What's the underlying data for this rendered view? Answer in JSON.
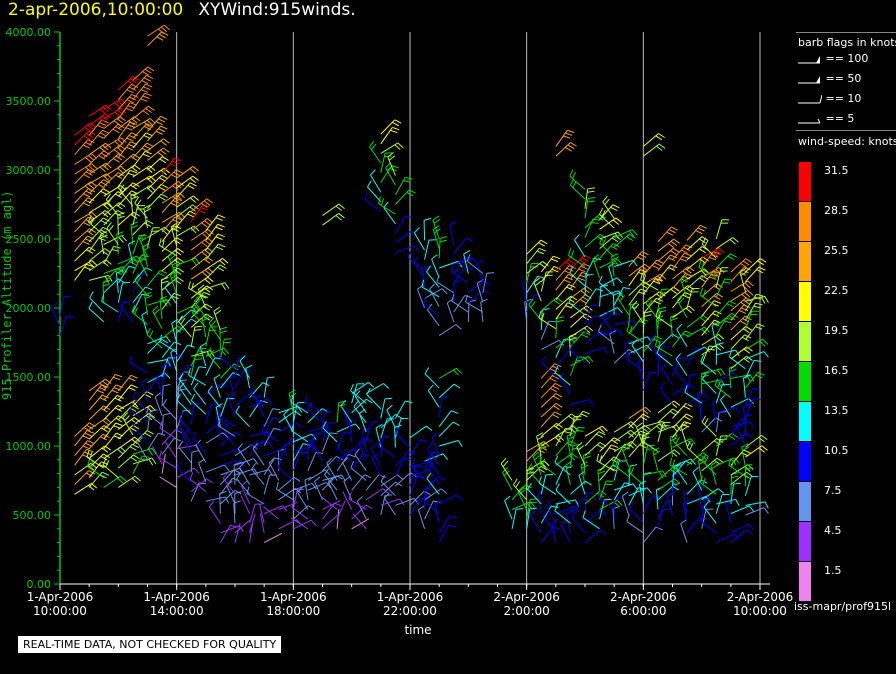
{
  "header": {
    "datetime": "2-apr-2006,10:00:00",
    "title": "XYWind:915winds."
  },
  "chart_data": {
    "type": "scatter",
    "subtype": "wind-barb time-height",
    "xlabel": "time",
    "ylabel": "915 Profiler Altitude (m agl)",
    "ylim": [
      0,
      4000
    ],
    "yticks": [
      "0.00",
      "500.00",
      "1000.00",
      "1500.00",
      "2000.00",
      "2500.00",
      "3000.00",
      "3500.00",
      "4000.00"
    ],
    "xticks": [
      {
        "date": "1-Apr-2006",
        "time": "10:00:00"
      },
      {
        "date": "1-Apr-2006",
        "time": "14:00:00"
      },
      {
        "date": "1-Apr-2006",
        "time": "18:00:00"
      },
      {
        "date": "1-Apr-2006",
        "time": "22:00:00"
      },
      {
        "date": "2-Apr-2006",
        "time": "2:00:00"
      },
      {
        "date": "2-Apr-2006",
        "time": "6:00:00"
      },
      {
        "date": "2-Apr-2006",
        "time": "10:00:00"
      }
    ],
    "xlim_hours": [
      0,
      24
    ],
    "grid": "vertical",
    "barb_legend_title": "barb flags in knots",
    "barb_legend": [
      "== 100",
      "== 50",
      "== 10",
      "== 5"
    ],
    "colorbar_title": "wind-speed: knots",
    "colorbar": [
      {
        "label": "31.5",
        "color": "#ff0000"
      },
      {
        "label": "28.5",
        "color": "#ff8c00"
      },
      {
        "label": "25.5",
        "color": "#ffa500"
      },
      {
        "label": "22.5",
        "color": "#ffff00"
      },
      {
        "label": "19.5",
        "color": "#adff2f"
      },
      {
        "label": "16.5",
        "color": "#00dd00"
      },
      {
        "label": "13.5",
        "color": "#00ffff"
      },
      {
        "label": "10.5",
        "color": "#0000ff"
      },
      {
        "label": "7.5",
        "color": "#6495ed"
      },
      {
        "label": "4.5",
        "color": "#9b30ff"
      },
      {
        "label": "1.5",
        "color": "#ee82ee"
      }
    ],
    "columns": [
      {
        "t": 0.0,
        "range": [
          1800,
          2000
        ],
        "speed": [
          12,
          12
        ]
      },
      {
        "t": 0.5,
        "range": [
          650,
          1100
        ],
        "speed": [
          24,
          26
        ]
      },
      {
        "t": 0.5,
        "range": [
          2200,
          3300
        ],
        "speed": [
          22,
          31
        ]
      },
      {
        "t": 1.0,
        "range": [
          700,
          1400
        ],
        "speed": [
          22,
          26
        ]
      },
      {
        "t": 1.0,
        "range": [
          2200,
          3400
        ],
        "speed": [
          18,
          31
        ]
      },
      {
        "t": 1.5,
        "range": [
          700,
          1400
        ],
        "speed": [
          18,
          26
        ]
      },
      {
        "t": 1.5,
        "range": [
          1900,
          3500
        ],
        "speed": [
          14,
          31
        ]
      },
      {
        "t": 2.0,
        "range": [
          700,
          1400
        ],
        "speed": [
          18,
          24
        ]
      },
      {
        "t": 2.0,
        "range": [
          1900,
          3600
        ],
        "speed": [
          12,
          31
        ]
      },
      {
        "t": 2.5,
        "range": [
          800,
          1300
        ],
        "speed": [
          16,
          24
        ]
      },
      {
        "t": 2.5,
        "range": [
          1900,
          3700
        ],
        "speed": [
          10,
          31
        ]
      },
      {
        "t": 3.0,
        "range": [
          900,
          3300
        ],
        "speed": [
          8,
          26
        ]
      },
      {
        "t": 3.0,
        "range": [
          3900,
          4000
        ],
        "speed": [
          26,
          28
        ]
      },
      {
        "t": 3.5,
        "range": [
          800,
          3000
        ],
        "speed": [
          4,
          30
        ]
      },
      {
        "t": 4.0,
        "range": [
          700,
          3000
        ],
        "speed": [
          4,
          24
        ]
      },
      {
        "t": 4.5,
        "range": [
          600,
          2700
        ],
        "speed": [
          6,
          30
        ]
      },
      {
        "t": 5.0,
        "range": [
          600,
          2600
        ],
        "speed": [
          6,
          24
        ]
      },
      {
        "t": 5.5,
        "range": [
          300,
          1900
        ],
        "speed": [
          5,
          18
        ]
      },
      {
        "t": 6.0,
        "range": [
          300,
          1600
        ],
        "speed": [
          4,
          12
        ]
      },
      {
        "t": 6.5,
        "range": [
          300,
          1500
        ],
        "speed": [
          4,
          14
        ]
      },
      {
        "t": 7.0,
        "range": [
          300,
          1400
        ],
        "speed": [
          4,
          12
        ]
      },
      {
        "t": 7.5,
        "range": [
          400,
          1300
        ],
        "speed": [
          4,
          14
        ]
      },
      {
        "t": 8.0,
        "range": [
          400,
          1300
        ],
        "speed": [
          4,
          18
        ]
      },
      {
        "t": 8.5,
        "range": [
          400,
          1250
        ],
        "speed": [
          4,
          14
        ]
      },
      {
        "t": 9.0,
        "range": [
          400,
          1300
        ],
        "speed": [
          4,
          12
        ]
      },
      {
        "t": 9.0,
        "range": [
          2600,
          2700
        ],
        "speed": [
          18,
          20
        ]
      },
      {
        "t": 9.5,
        "range": [
          400,
          1200
        ],
        "speed": [
          4,
          14
        ]
      },
      {
        "t": 10.0,
        "range": [
          400,
          1400
        ],
        "speed": [
          4,
          14
        ]
      },
      {
        "t": 10.5,
        "range": [
          400,
          1400
        ],
        "speed": [
          4,
          16
        ]
      },
      {
        "t": 11.0,
        "range": [
          500,
          1300
        ],
        "speed": [
          6,
          14
        ]
      },
      {
        "t": 11.0,
        "range": [
          2700,
          3300
        ],
        "speed": [
          10,
          24
        ]
      },
      {
        "t": 11.5,
        "range": [
          500,
          1200
        ],
        "speed": [
          6,
          14
        ]
      },
      {
        "t": 11.5,
        "range": [
          2400,
          3000
        ],
        "speed": [
          10,
          20
        ]
      },
      {
        "t": 12.0,
        "range": [
          500,
          1100
        ],
        "speed": [
          8,
          12
        ]
      },
      {
        "t": 12.5,
        "range": [
          400,
          900
        ],
        "speed": [
          8,
          13
        ]
      },
      {
        "t": 12.5,
        "range": [
          2000,
          2500
        ],
        "speed": [
          8,
          14
        ]
      },
      {
        "t": 13.0,
        "range": [
          300,
          1500
        ],
        "speed": [
          10,
          14
        ]
      },
      {
        "t": 13.0,
        "range": [
          1800,
          2500
        ],
        "speed": [
          8,
          16
        ]
      },
      {
        "t": 13.5,
        "range": [
          1900,
          2500
        ],
        "speed": [
          8,
          12
        ]
      },
      {
        "t": 14.0,
        "range": [
          1900,
          2300
        ],
        "speed": [
          8,
          12
        ]
      },
      {
        "t": 14.5,
        "range": [
          1900,
          2300
        ],
        "speed": [
          6,
          10
        ]
      },
      {
        "t": 15.5,
        "range": [
          400,
          800
        ],
        "speed": [
          14,
          20
        ]
      },
      {
        "t": 16.0,
        "range": [
          400,
          1000
        ],
        "speed": [
          14,
          26
        ]
      },
      {
        "t": 16.0,
        "range": [
          1900,
          2400
        ],
        "speed": [
          8,
          24
        ]
      },
      {
        "t": 16.5,
        "range": [
          300,
          1500
        ],
        "speed": [
          8,
          30
        ]
      },
      {
        "t": 16.5,
        "range": [
          1700,
          2300
        ],
        "speed": [
          8,
          24
        ]
      },
      {
        "t": 17.0,
        "range": [
          300,
          1200
        ],
        "speed": [
          10,
          22
        ]
      },
      {
        "t": 17.0,
        "range": [
          1500,
          2300
        ],
        "speed": [
          10,
          31
        ]
      },
      {
        "t": 17.0,
        "range": [
          3100,
          3200
        ],
        "speed": [
          26,
          28
        ]
      },
      {
        "t": 17.5,
        "range": [
          300,
          1200
        ],
        "speed": [
          10,
          20
        ]
      },
      {
        "t": 17.5,
        "range": [
          1300,
          2300
        ],
        "speed": [
          10,
          31
        ]
      },
      {
        "t": 18.0,
        "range": [
          300,
          1100
        ],
        "speed": [
          10,
          22
        ]
      },
      {
        "t": 18.0,
        "range": [
          1600,
          2900
        ],
        "speed": [
          10,
          18
        ]
      },
      {
        "t": 18.5,
        "range": [
          400,
          1000
        ],
        "speed": [
          12,
          24
        ]
      },
      {
        "t": 18.5,
        "range": [
          1800,
          2700
        ],
        "speed": [
          10,
          22
        ]
      },
      {
        "t": 19.0,
        "range": [
          400,
          1100
        ],
        "speed": [
          10,
          22
        ]
      },
      {
        "t": 19.0,
        "range": [
          1600,
          2700
        ],
        "speed": [
          8,
          20
        ]
      },
      {
        "t": 19.5,
        "range": [
          500,
          1200
        ],
        "speed": [
          10,
          24
        ]
      },
      {
        "t": 19.5,
        "range": [
          1600,
          2300
        ],
        "speed": [
          10,
          26
        ]
      },
      {
        "t": 20.0,
        "range": [
          300,
          1200
        ],
        "speed": [
          8,
          22
        ]
      },
      {
        "t": 20.0,
        "range": [
          1400,
          2300
        ],
        "speed": [
          10,
          28
        ]
      },
      {
        "t": 20.0,
        "range": [
          3100,
          3200
        ],
        "speed": [
          20,
          22
        ]
      },
      {
        "t": 20.5,
        "range": [
          400,
          1300
        ],
        "speed": [
          10,
          24
        ]
      },
      {
        "t": 20.5,
        "range": [
          1500,
          2500
        ],
        "speed": [
          10,
          28
        ]
      },
      {
        "t": 21.0,
        "range": [
          500,
          1200
        ],
        "speed": [
          8,
          24
        ]
      },
      {
        "t": 21.0,
        "range": [
          1300,
          2400
        ],
        "speed": [
          8,
          30
        ]
      },
      {
        "t": 21.5,
        "range": [
          300,
          1000
        ],
        "speed": [
          8,
          18
        ]
      },
      {
        "t": 21.5,
        "range": [
          1300,
          2500
        ],
        "speed": [
          10,
          24
        ]
      },
      {
        "t": 22.0,
        "range": [
          400,
          1000
        ],
        "speed": [
          8,
          22
        ]
      },
      {
        "t": 22.0,
        "range": [
          1100,
          2400
        ],
        "speed": [
          10,
          31
        ]
      },
      {
        "t": 22.5,
        "range": [
          300,
          1100
        ],
        "speed": [
          10,
          20
        ]
      },
      {
        "t": 22.5,
        "range": [
          1100,
          2500
        ],
        "speed": [
          10,
          20
        ]
      },
      {
        "t": 23.0,
        "range": [
          300,
          900
        ],
        "speed": [
          10,
          22
        ]
      },
      {
        "t": 23.0,
        "range": [
          1000,
          2300
        ],
        "speed": [
          10,
          31
        ]
      },
      {
        "t": 23.5,
        "range": [
          500,
          1000
        ],
        "speed": [
          10,
          22
        ]
      },
      {
        "t": 23.5,
        "range": [
          1000,
          2300
        ],
        "speed": [
          10,
          22
        ]
      }
    ]
  },
  "source_label": "iss-mapr/prof915l",
  "qa_note": "REAL-TIME DATA, NOT CHECKED FOR QUALITY"
}
